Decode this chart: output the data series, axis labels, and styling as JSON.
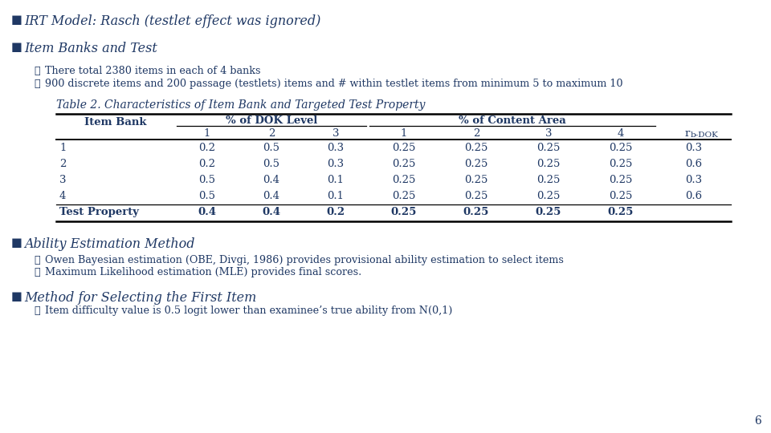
{
  "bg_color": "#ffffff",
  "text_color": "#000000",
  "bullet1": "IRT Model: Rasch (testlet effect was ignored)",
  "bullet2": "Item Banks and Test",
  "check1": "There total 2380 items in each of 4 banks",
  "check2": "900 discrete items and 200 passage (testlets) items and # within testlet items from minimum 5 to maximum 10",
  "table_title": "Table 2. Characteristics of Item Bank and Targeted Test Property",
  "col_group1": "% of DOK Level",
  "col_group2": "% of Content Area",
  "col_sub1": [
    "1",
    "2",
    "3"
  ],
  "col_sub2": [
    "1",
    "2",
    "3",
    "4"
  ],
  "row_header": "Item Bank",
  "rows": [
    [
      "1",
      "0.2",
      "0.5",
      "0.3",
      "0.25",
      "0.25",
      "0.25",
      "0.25",
      "0.3"
    ],
    [
      "2",
      "0.2",
      "0.5",
      "0.3",
      "0.25",
      "0.25",
      "0.25",
      "0.25",
      "0.6"
    ],
    [
      "3",
      "0.5",
      "0.4",
      "0.1",
      "0.25",
      "0.25",
      "0.25",
      "0.25",
      "0.3"
    ],
    [
      "4",
      "0.5",
      "0.4",
      "0.1",
      "0.25",
      "0.25",
      "0.25",
      "0.25",
      "0.6"
    ],
    [
      "Test Property",
      "0.4",
      "0.4",
      "0.2",
      "0.25",
      "0.25",
      "0.25",
      "0.25",
      ""
    ]
  ],
  "bullet3": "Ability Estimation Method",
  "check3": "Owen Bayesian estimation (OBE, Divgi, 1986) provides provisional ability estimation to select items",
  "check4": "Maximum Likelihood estimation (MLE) provides final scores.",
  "bullet4": "Method for Selecting the First Item",
  "check5": "Item difficulty value is 0.5 logit lower than examinee’s true ability from N(0,1)",
  "page_num": "6",
  "navy": "#1F3864",
  "bullet_fs": 11.5,
  "sub_fs": 9.2,
  "table_title_fs": 10.0,
  "table_fs": 9.5,
  "small_fs": 7.5
}
